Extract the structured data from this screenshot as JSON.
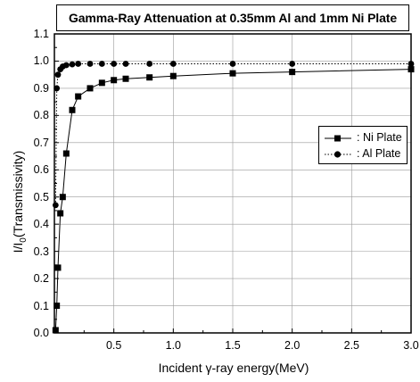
{
  "chart_data": {
    "type": "scatter",
    "title": "Gamma-Ray Attenuation at 0.35mm Al and 1mm Ni Plate",
    "xlabel": "Incident γ-ray energy(MeV)",
    "ylabel": "I/I0(Transmissivity)",
    "ylabel_main": "I/I",
    "ylabel_sub": "0",
    "ylabel_rest": "(Transmissivity)",
    "xlim": [
      0.0,
      3.0
    ],
    "ylim": [
      0.0,
      1.1
    ],
    "xticks": [
      "0.5",
      "1.0",
      "1.5",
      "2.0",
      "2.5",
      "3.0"
    ],
    "yticks": [
      "0.0",
      "0.1",
      "0.2",
      "0.3",
      "0.4",
      "0.5",
      "0.6",
      "0.7",
      "0.8",
      "0.9",
      "1.0",
      "1.1"
    ],
    "grid": true,
    "legend_position": "right",
    "series": [
      {
        "name": ": Ni Plate",
        "marker": "square",
        "line": "solid",
        "color": "#000000",
        "x": [
          0.01,
          0.02,
          0.03,
          0.05,
          0.07,
          0.1,
          0.15,
          0.2,
          0.3,
          0.4,
          0.5,
          0.6,
          0.8,
          1.0,
          1.5,
          2.0,
          3.0
        ],
        "y": [
          0.01,
          0.1,
          0.24,
          0.44,
          0.5,
          0.66,
          0.82,
          0.87,
          0.9,
          0.92,
          0.93,
          0.935,
          0.94,
          0.945,
          0.955,
          0.96,
          0.97
        ]
      },
      {
        "name": ": Al Plate",
        "marker": "circle",
        "line": "dotted",
        "color": "#000000",
        "x": [
          0.01,
          0.02,
          0.03,
          0.05,
          0.07,
          0.1,
          0.15,
          0.2,
          0.3,
          0.4,
          0.5,
          0.6,
          0.8,
          1.0,
          1.5,
          2.0,
          3.0
        ],
        "y": [
          0.47,
          0.9,
          0.95,
          0.97,
          0.98,
          0.985,
          0.988,
          0.99,
          0.99,
          0.99,
          0.99,
          0.99,
          0.99,
          0.99,
          0.99,
          0.99,
          0.99
        ]
      }
    ]
  }
}
